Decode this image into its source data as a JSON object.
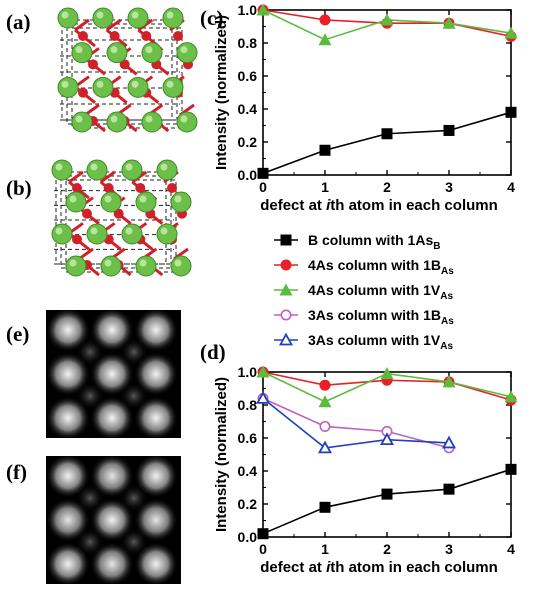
{
  "panels": {
    "a": "(a)",
    "b": "(b)",
    "c": "(c)",
    "d": "(d)",
    "e": "(e)",
    "f": "(f)"
  },
  "colors": {
    "b_series": "#000000",
    "as_1b": "#e8202a",
    "as_1v": "#5dbb3c",
    "as3_1b": "#c060c0",
    "as3_1v": "#2040c0",
    "atom_green": "#6cbf48",
    "atom_red": "#d0202a"
  },
  "legend": [
    {
      "key": "B",
      "text": "B column with 1As",
      "sub": "B",
      "color": "#000000",
      "marker": "square-filled"
    },
    {
      "key": "As1B",
      "text": "4As column with 1B",
      "sub": "As",
      "color": "#e8202a",
      "marker": "circle-filled"
    },
    {
      "key": "As1V",
      "text": "4As column with 1V",
      "sub": "As",
      "color": "#5dbb3c",
      "marker": "triangle-filled"
    },
    {
      "key": "As3B",
      "text": "3As column with 1B",
      "sub": "As",
      "color": "#c060c0",
      "marker": "circle-open"
    },
    {
      "key": "As3V",
      "text": "3As column with 1V",
      "sub": "As",
      "color": "#2040c0",
      "marker": "triangle-open"
    }
  ],
  "chart_data": [
    {
      "panel": "c",
      "type": "line",
      "ylabel": "Intensity (normalized)",
      "xlabel_parts": [
        "defect at ",
        "i",
        "th atom in each column"
      ],
      "xlim": [
        0,
        4
      ],
      "ylim": [
        0,
        1
      ],
      "xticks": [
        "0",
        "1",
        "2",
        "3",
        "4"
      ],
      "yticks": [
        "0.0",
        "0.2",
        "0.4",
        "0.6",
        "0.8",
        "1.0"
      ],
      "series": [
        {
          "key": "B",
          "x": [
            0,
            1,
            2,
            3,
            4
          ],
          "values": [
            0.01,
            0.15,
            0.25,
            0.27,
            0.38
          ]
        },
        {
          "key": "As1B",
          "x": [
            0,
            1,
            2,
            3,
            4
          ],
          "values": [
            1.0,
            0.94,
            0.92,
            0.92,
            0.84
          ]
        },
        {
          "key": "As1V",
          "x": [
            0,
            1,
            2,
            3,
            4
          ],
          "values": [
            1.0,
            0.82,
            0.94,
            0.92,
            0.86
          ]
        }
      ]
    },
    {
      "panel": "d",
      "type": "line",
      "ylabel": "Intensity (normalized)",
      "xlabel_parts": [
        "defect at ",
        "i",
        "th atom in each column"
      ],
      "xlim": [
        0,
        4
      ],
      "ylim": [
        0,
        1
      ],
      "xticks": [
        "0",
        "1",
        "2",
        "3",
        "4"
      ],
      "yticks": [
        "0.0",
        "0.2",
        "0.4",
        "0.6",
        "0.8",
        "1.0"
      ],
      "series": [
        {
          "key": "B",
          "x": [
            0,
            1,
            2,
            3,
            4
          ],
          "values": [
            0.02,
            0.18,
            0.26,
            0.29,
            0.41
          ]
        },
        {
          "key": "As1B",
          "x": [
            0,
            1,
            2,
            3,
            4
          ],
          "values": [
            1.0,
            0.92,
            0.95,
            0.94,
            0.83
          ]
        },
        {
          "key": "As1V",
          "x": [
            0,
            1,
            2,
            3,
            4
          ],
          "values": [
            1.0,
            0.82,
            0.99,
            0.94,
            0.85
          ]
        },
        {
          "key": "As3B",
          "x": [
            0,
            1,
            2,
            3
          ],
          "values": [
            0.84,
            0.67,
            0.64,
            0.54
          ]
        },
        {
          "key": "As3V",
          "x": [
            0,
            1,
            2,
            3
          ],
          "values": [
            0.84,
            0.54,
            0.59,
            0.57
          ]
        }
      ]
    }
  ]
}
